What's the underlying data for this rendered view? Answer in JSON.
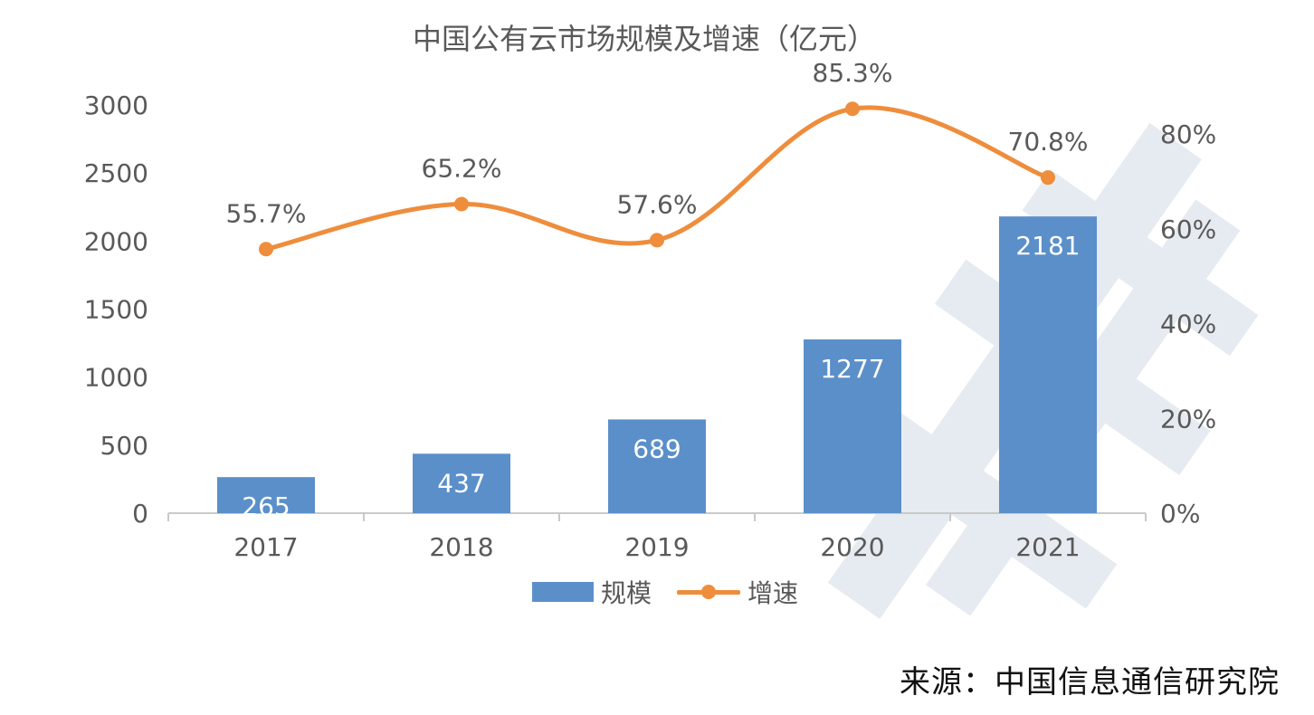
{
  "chart_data": {
    "type": "bar",
    "title": "中国公有云市场规模及增速（亿元）",
    "categories": [
      "2017",
      "2018",
      "2019",
      "2020",
      "2021"
    ],
    "series": [
      {
        "name": "规模",
        "type": "bar",
        "axis": "left",
        "values": [
          265,
          437,
          689,
          1277,
          2181
        ],
        "labels": [
          "265",
          "437",
          "689",
          "1277",
          "2181"
        ]
      },
      {
        "name": "增速",
        "type": "line",
        "axis": "right",
        "values": [
          55.7,
          65.2,
          57.6,
          85.3,
          70.8
        ],
        "labels": [
          "55.7%",
          "65.2%",
          "57.6%",
          "85.3%",
          "70.8%"
        ]
      }
    ],
    "y_left": {
      "range": [
        0,
        3000
      ],
      "ticks": [
        "0",
        "500",
        "1000",
        "1500",
        "2000",
        "2500",
        "3000"
      ]
    },
    "y_right": {
      "range": [
        0,
        80
      ],
      "ticks": [
        "0%",
        "20%",
        "40%",
        "60%",
        "80%"
      ]
    },
    "grid": false,
    "legend": "bottom-center",
    "colors": {
      "bar": "#5b8fc9",
      "line": "#ee8d3c",
      "text": "#595959"
    }
  },
  "source": "来源：中国信息通信研究院"
}
